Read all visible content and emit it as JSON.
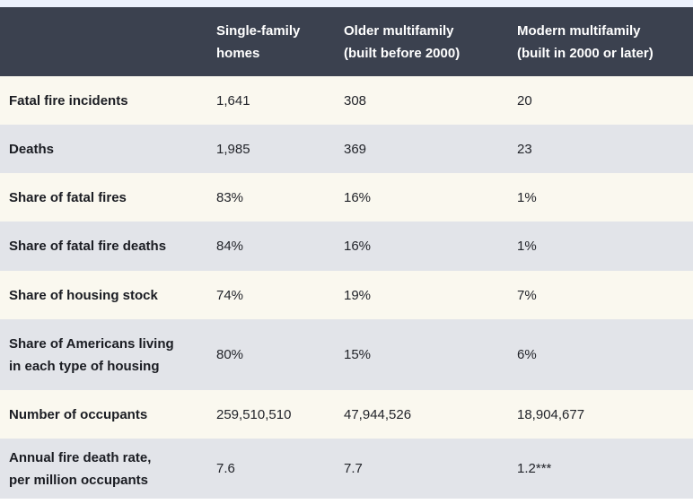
{
  "chart_data": {
    "type": "table",
    "title": "",
    "columns": [
      "",
      "Single-family homes",
      "Older multifamily (built before 2000)",
      "Modern multifamily (built in 2000 or later)"
    ],
    "rows": [
      {
        "label": "Fatal fire incidents",
        "values": [
          "1,641",
          "308",
          "20"
        ]
      },
      {
        "label": "Deaths",
        "values": [
          "1,985",
          "369",
          "23"
        ]
      },
      {
        "label": "Share of fatal fires",
        "values": [
          "83%",
          "16%",
          "1%"
        ]
      },
      {
        "label": "Share of fatal fire deaths",
        "values": [
          "84%",
          "16%",
          "1%"
        ]
      },
      {
        "label": "Share of housing stock",
        "values": [
          "74%",
          "19%",
          "7%"
        ]
      },
      {
        "label": "Share of Americans living in each type of housing",
        "values": [
          "80%",
          "15%",
          "6%"
        ]
      },
      {
        "label": "Number of occupants",
        "values": [
          "259,510,510",
          "47,944,526",
          "18,904,677"
        ]
      },
      {
        "label": "Annual fire death rate, per million occupants",
        "values": [
          "7.6",
          "7.7",
          "1.2***"
        ]
      }
    ]
  },
  "table": {
    "header": {
      "columns": [
        "",
        "Single-family\nhomes",
        "Older multifamily\n(built before 2000)",
        "Modern multifamily\n(built in 2000 or later)"
      ]
    },
    "rows": [
      {
        "label": "Fatal fire incidents",
        "values": [
          "1,641",
          "308",
          "20"
        ]
      },
      {
        "label": "Deaths",
        "values": [
          "1,985",
          "369",
          "23"
        ]
      },
      {
        "label": "Share of fatal fires",
        "values": [
          "83%",
          "16%",
          "1%"
        ]
      },
      {
        "label": "Share of fatal fire deaths",
        "values": [
          "84%",
          "16%",
          "1%"
        ]
      },
      {
        "label": "Share of housing stock",
        "values": [
          "74%",
          "19%",
          "7%"
        ]
      },
      {
        "label": "Share of Americans living\nin each type of housing",
        "values": [
          "80%",
          "15%",
          "6%"
        ]
      },
      {
        "label": "Number of occupants",
        "values": [
          "259,510,510",
          "47,944,526",
          "18,904,677"
        ]
      },
      {
        "label": "Annual fire death rate,\nper million occupants",
        "values": [
          "7.6",
          "7.7",
          "1.2***"
        ]
      }
    ],
    "colors": {
      "header_bg": "#3b414f",
      "header_text": "#ffffff",
      "row_cream": "#faf8ef",
      "row_gray": "#e2e4e9",
      "top_strip": "#ecf1fc",
      "label_text": "#1a1c22",
      "value_text": "#22242a"
    }
  }
}
